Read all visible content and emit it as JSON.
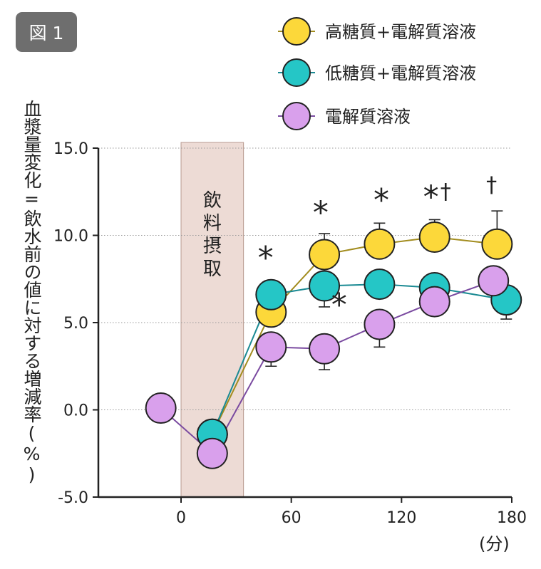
{
  "figure_label": "図 1",
  "chart_data": {
    "type": "line",
    "ylabel": "血漿量変化=飲水前の値に対する増減率(%)",
    "xlabel": "",
    "x_unit": "(分)",
    "xlim": [
      -45,
      180
    ],
    "ylim": [
      -5.0,
      15.0
    ],
    "x_ticks": [
      0,
      60,
      120,
      180
    ],
    "y_ticks": [
      {
        "value": -5.0,
        "label": "-5.0"
      },
      {
        "value": 0.0,
        "label": "0.0"
      },
      {
        "value": 5.0,
        "label": "5.0"
      },
      {
        "value": 10.0,
        "label": "10.0"
      },
      {
        "value": 15.0,
        "label": "15.0"
      }
    ],
    "grid": "horizontal dotted",
    "legend_position": "top-right",
    "intake_band": {
      "x_start": 0,
      "x_end": 34,
      "label": "飲料摂取",
      "color": "#eddbd5"
    },
    "series": [
      {
        "name": "高糖質+電解質溶液",
        "marker_color": "#fcd83a",
        "line_color": "#a28c1e",
        "points": [
          {
            "x": 17,
            "y": -1.4
          },
          {
            "x": 49,
            "y": 5.6,
            "err": 0.6
          },
          {
            "x": 78,
            "y": 8.9,
            "err": 1.2
          },
          {
            "x": 108,
            "y": 9.5,
            "err": 1.2
          },
          {
            "x": 138,
            "y": 9.9,
            "err": 1.0
          },
          {
            "x": 172,
            "y": 9.5,
            "err": 1.9
          }
        ]
      },
      {
        "name": "低糖質+電解質溶液",
        "marker_color": "#25c6c6",
        "line_color": "#1a8a93",
        "points": [
          {
            "x": 17,
            "y": -1.4
          },
          {
            "x": 49,
            "y": 6.6
          },
          {
            "x": 78,
            "y": 7.1,
            "err": 1.2
          },
          {
            "x": 108,
            "y": 7.2
          },
          {
            "x": 138,
            "y": 7.0
          },
          {
            "x": 177,
            "y": 6.3,
            "err": 1.1
          }
        ]
      },
      {
        "name": "電解質溶液",
        "marker_color": "#d9a0ec",
        "line_color": "#7a4aa0",
        "points": [
          {
            "x": -11,
            "y": 0.1
          },
          {
            "x": 17,
            "y": -2.5
          },
          {
            "x": 49,
            "y": 3.6,
            "err": 1.1
          },
          {
            "x": 78,
            "y": 3.5,
            "err": 1.2
          },
          {
            "x": 108,
            "y": 4.9,
            "err": 1.3
          },
          {
            "x": 138,
            "y": 6.2
          },
          {
            "x": 170,
            "y": 7.4
          }
        ]
      }
    ],
    "annotations": [
      {
        "x": 46,
        "y": 8.1,
        "text": "*",
        "size": "large"
      },
      {
        "x": 76,
        "y": 10.7,
        "text": "*",
        "size": "large"
      },
      {
        "x": 109,
        "y": 11.4,
        "text": "*",
        "size": "large"
      },
      {
        "x": 136,
        "y": 11.6,
        "text": "*",
        "size": "large"
      },
      {
        "x": 144,
        "y": 12.1,
        "text": "†",
        "size": "small"
      },
      {
        "x": 169,
        "y": 12.5,
        "text": "†",
        "size": "small"
      },
      {
        "x": 86,
        "y": 5.4,
        "text": "*",
        "size": "large"
      }
    ]
  }
}
